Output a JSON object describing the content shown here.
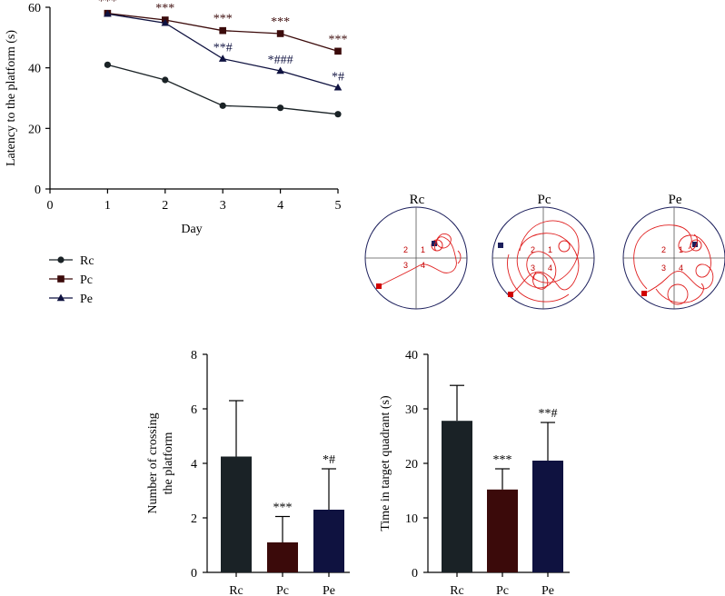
{
  "colors": {
    "Rc": "#1a2226",
    "Pc": "#3b0a0a",
    "Pe": "#0f1240",
    "path": "#e02020",
    "platform": "#d00000",
    "start_marker": "#1c1f5c"
  },
  "chart_data": [
    {
      "type": "line",
      "xlabel": "Day",
      "ylabel": "Latency to the platform (s)",
      "xlim": [
        0,
        5
      ],
      "ylim": [
        0,
        60
      ],
      "x": [
        1,
        2,
        3,
        4,
        5
      ],
      "xticks": [
        "0",
        "1",
        "2",
        "3",
        "4",
        "5"
      ],
      "yticks": [
        "0",
        "20",
        "40",
        "60"
      ],
      "legend": "bottom-left, below plot",
      "series": [
        {
          "name": "Rc",
          "marker": "circle",
          "values": [
            41,
            36,
            27.5,
            26.8,
            24.7
          ],
          "annotations": [
            "",
            "",
            "",
            "",
            ""
          ]
        },
        {
          "name": "Pc",
          "marker": "square",
          "values": [
            58,
            55.8,
            52.3,
            51.3,
            45.5
          ],
          "annotations": [
            "***",
            "***",
            "***",
            "***",
            "***"
          ]
        },
        {
          "name": "Pe",
          "marker": "triangle",
          "values": [
            57.8,
            54.8,
            43,
            39,
            33.5
          ],
          "annotations": [
            "",
            "",
            "**#",
            "*###",
            "*#"
          ]
        }
      ]
    },
    {
      "type": "bar",
      "categories": [
        "Rc",
        "Pc",
        "Pe"
      ],
      "values": [
        4.25,
        1.1,
        2.3
      ],
      "errors": [
        2.05,
        0.95,
        1.5
      ],
      "annotations": [
        "",
        "***",
        "*#"
      ],
      "ylabel_line1": "Number of crossing",
      "ylabel_line2": "the platform",
      "ylim": [
        0,
        8
      ],
      "yticks": [
        "0",
        "2",
        "4",
        "6",
        "8"
      ]
    },
    {
      "type": "bar",
      "categories": [
        "Rc",
        "Pc",
        "Pe"
      ],
      "values": [
        27.8,
        15.2,
        20.5
      ],
      "errors": [
        6.5,
        3.8,
        7.0
      ],
      "annotations": [
        "",
        "***",
        "**#"
      ],
      "ylabel": "Time in target quadrant (s)",
      "ylim": [
        0,
        40
      ],
      "yticks": [
        "0",
        "10",
        "20",
        "30",
        "40"
      ]
    }
  ],
  "swim_paths": {
    "panels": [
      {
        "title": "Rc",
        "quadrants": [
          "1",
          "2",
          "3",
          "4"
        ]
      },
      {
        "title": "Pc",
        "quadrants": [
          "1",
          "2",
          "3",
          "4"
        ]
      },
      {
        "title": "Pe",
        "quadrants": [
          "1",
          "2",
          "3",
          "4"
        ]
      }
    ]
  }
}
